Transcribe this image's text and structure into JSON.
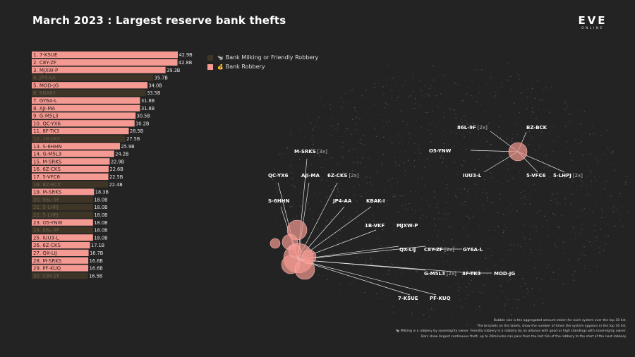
{
  "title": "March 2023 : Largest reserve bank thefts",
  "logo": {
    "main": "EVE",
    "sub": "ONLINE"
  },
  "legend": [
    {
      "label": "Bank Milking or Friendly Robbery",
      "icon": "🐄",
      "color": "#3e3526"
    },
    {
      "label": "Bank Robbery",
      "icon": "💰",
      "color": "#f59a92"
    }
  ],
  "chart_data": {
    "type": "bar",
    "orientation": "horizontal",
    "title": "March 2023 : Largest reserve bank thefts",
    "unit": "B",
    "xlim": [
      0,
      42.9
    ],
    "colors": {
      "robbery": "#f59a92",
      "milking": "#3e3526"
    },
    "bars": [
      {
        "label": "1. 7-K5UE",
        "value": 42.9,
        "value_label": "42.9B",
        "kind": "robbery"
      },
      {
        "label": "2. C8Y-ZF",
        "value": 42.8,
        "value_label": "42.8B",
        "kind": "robbery"
      },
      {
        "label": "3. MJXW-P",
        "value": 39.3,
        "value_label": "39.3B",
        "kind": "robbery"
      },
      {
        "label": "4. JP4-AA",
        "value": 35.7,
        "value_label": "35.7B",
        "kind": "milking"
      },
      {
        "label": "5. MOD-JG",
        "value": 34.0,
        "value_label": "34.0B",
        "kind": "robbery"
      },
      {
        "label": "6. KBAK-I",
        "value": 33.5,
        "value_label": "33.5B",
        "kind": "milking"
      },
      {
        "label": "7. GY6A-L",
        "value": 31.8,
        "value_label": "31.8B",
        "kind": "robbery"
      },
      {
        "label": "8. AJI-MA",
        "value": 31.8,
        "value_label": "31.8B",
        "kind": "robbery"
      },
      {
        "label": "9. G-M5L3",
        "value": 30.5,
        "value_label": "30.5B",
        "kind": "robbery"
      },
      {
        "label": "10. QC-YX6",
        "value": 30.2,
        "value_label": "30.2B",
        "kind": "robbery"
      },
      {
        "label": "11. 8F-TK3",
        "value": 28.5,
        "value_label": "28.5B",
        "kind": "robbery"
      },
      {
        "label": "12. 1B-VKF",
        "value": 27.5,
        "value_label": "27.5B",
        "kind": "milking"
      },
      {
        "label": "13. S-6HHN",
        "value": 25.9,
        "value_label": "25.9B",
        "kind": "robbery"
      },
      {
        "label": "14. G-M5L3",
        "value": 24.2,
        "value_label": "24.2B",
        "kind": "robbery"
      },
      {
        "label": "15. M-SRKS",
        "value": 22.9,
        "value_label": "22.9B",
        "kind": "robbery"
      },
      {
        "label": "16. 6Z-CKS",
        "value": 22.6,
        "value_label": "22.6B",
        "kind": "robbery"
      },
      {
        "label": "17. 5-VFC6",
        "value": 22.5,
        "value_label": "22.5B",
        "kind": "robbery"
      },
      {
        "label": "18. BZ-BCK",
        "value": 22.4,
        "value_label": "22.4B",
        "kind": "milking"
      },
      {
        "label": "19. M-SRKS",
        "value": 18.3,
        "value_label": "18.3B",
        "kind": "robbery"
      },
      {
        "label": "20. 86L-9F",
        "value": 18.0,
        "value_label": "18.0B",
        "kind": "milking"
      },
      {
        "label": "21. 5-LHPJ",
        "value": 18.0,
        "value_label": "18.0B",
        "kind": "milking"
      },
      {
        "label": "22. 5-LHPJ",
        "value": 18.0,
        "value_label": "18.0B",
        "kind": "milking"
      },
      {
        "label": "23. O5-YNW",
        "value": 18.0,
        "value_label": "18.0B",
        "kind": "robbery"
      },
      {
        "label": "24. 86L-9F",
        "value": 18.0,
        "value_label": "18.0B",
        "kind": "milking"
      },
      {
        "label": "25. IUU3-L",
        "value": 18.0,
        "value_label": "18.0B",
        "kind": "robbery"
      },
      {
        "label": "26. 6Z-CKS",
        "value": 17.1,
        "value_label": "17.1B",
        "kind": "robbery"
      },
      {
        "label": "27. QX-LIJ",
        "value": 16.7,
        "value_label": "16.7B",
        "kind": "robbery"
      },
      {
        "label": "28. M-SRKS",
        "value": 16.6,
        "value_label": "16.6B",
        "kind": "robbery"
      },
      {
        "label": "29. PF-KUQ",
        "value": 16.6,
        "value_label": "16.6B",
        "kind": "robbery"
      },
      {
        "label": "30. C8Y-ZF",
        "value": 16.5,
        "value_label": "16.5B",
        "kind": "milking"
      }
    ],
    "map_labels": [
      {
        "name": "86L-9F",
        "count": "[2x]"
      },
      {
        "name": "BZ-BCK",
        "count": ""
      },
      {
        "name": "O5-YNW",
        "count": ""
      },
      {
        "name": "IUU3-L",
        "count": ""
      },
      {
        "name": "5-VFC6",
        "count": ""
      },
      {
        "name": "5-LHPJ",
        "count": "[2x]"
      },
      {
        "name": "M-SRKS",
        "count": "[3x]"
      },
      {
        "name": "QC-YX6",
        "count": ""
      },
      {
        "name": "AJI-MA",
        "count": ""
      },
      {
        "name": "6Z-CKS",
        "count": "[2x]"
      },
      {
        "name": "S-6HHN",
        "count": ""
      },
      {
        "name": "JP4-AA",
        "count": ""
      },
      {
        "name": "KBAK-I",
        "count": ""
      },
      {
        "name": "1B-VKF",
        "count": ""
      },
      {
        "name": "MJXW-P",
        "count": ""
      },
      {
        "name": "QX-LIJ",
        "count": ""
      },
      {
        "name": "C8Y-ZF",
        "count": "[2x]"
      },
      {
        "name": "GY6A-L",
        "count": ""
      },
      {
        "name": "G-M5L3",
        "count": "[2x]"
      },
      {
        "name": "8F-TK3",
        "count": ""
      },
      {
        "name": "MOD-JG",
        "count": ""
      },
      {
        "name": "7-K5UE",
        "count": ""
      },
      {
        "name": "PF-KUQ",
        "count": ""
      }
    ]
  },
  "notes": [
    "Bubble size is the aggregated amount stolen for each system over the top 30 list.",
    "The brackets on the labels, show the number of times the system appears in the top 30 list.",
    "🐄 Milking is a robbery by sovereignty owner. Friendly robbery is a robbery by an alliance with good or high standings with sovereignty owner.",
    "Bars show largest continuous theft, up to 20minutes can pass from the last tick of the robbery to the start of the next robbery."
  ]
}
